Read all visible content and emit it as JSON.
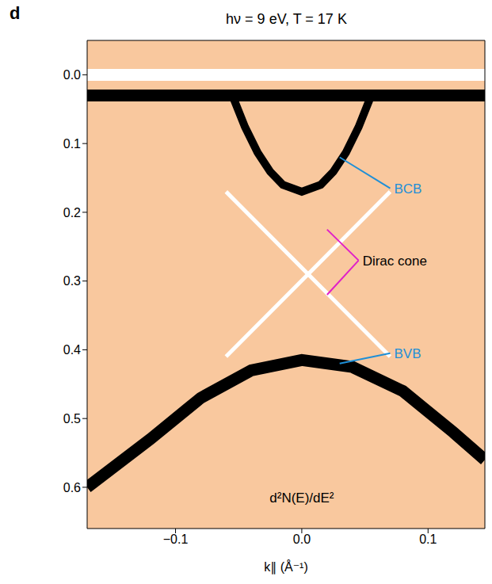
{
  "chart_data": {
    "type": "line",
    "panel": "d",
    "title": "hν = 9 eV, T = 17 K",
    "xlabel": "k∥ (Å⁻¹)",
    "xlim": [
      -0.17,
      0.145
    ],
    "xticks": [
      {
        "value": -0.1,
        "label": "−0.1"
      },
      {
        "value": 0,
        "label": "0.0"
      },
      0.1
    ],
    "ylim": [
      -0.05,
      0.66
    ],
    "yticks": [
      {
        "value": 0,
        "label": "0.0"
      },
      0.1,
      0.2,
      0.3,
      0.4,
      0.5,
      0.6
    ],
    "grid": false,
    "series": [
      {
        "color": "#ffffff",
        "line_style": "thick",
        "x": [
          -0.17,
          0.145
        ],
        "values": [
          0.0,
          0.0
        ]
      },
      {
        "color": "#000000",
        "line_style": "thick",
        "x": [
          -0.17,
          0.145
        ],
        "values": [
          0.03,
          0.03
        ]
      },
      {
        "color": "#000000",
        "line_style": "medium",
        "x": [
          -0.055,
          -0.045,
          -0.035,
          -0.025,
          -0.015,
          0,
          0.015,
          0.025,
          0.035,
          0.045,
          0.055
        ],
        "values": [
          0.03,
          0.076,
          0.113,
          0.141,
          0.16,
          0.17,
          0.16,
          0.141,
          0.113,
          0.076,
          0.03
        ]
      },
      {
        "color": "#ffffff",
        "line_style": "thin",
        "x": [
          -0.06,
          0.005,
          0.07
        ],
        "values": [
          0.17,
          0.29,
          0.17
        ]
      },
      {
        "color": "#ffffff",
        "line_style": "thin",
        "x": [
          -0.06,
          0.005,
          0.07
        ],
        "values": [
          0.41,
          0.29,
          0.41
        ]
      },
      {
        "color": "#000000",
        "line_style": "thick",
        "x": [
          -0.17,
          -0.12,
          -0.08,
          -0.04,
          0,
          0.04,
          0.08,
          0.12,
          0.145
        ],
        "values": [
          0.6,
          0.53,
          0.47,
          0.43,
          0.415,
          0.425,
          0.46,
          0.52,
          0.56
        ]
      }
    ],
    "annotations": [
      {
        "text": "BCB",
        "color": "#1f8fd6",
        "x": 0.07,
        "y": 0.165,
        "targets": [
          [
            0.03,
            0.12
          ]
        ]
      },
      {
        "text": "Dirac cone",
        "color": "#000000",
        "line_color": "#e020c8",
        "x": 0.045,
        "y": 0.27,
        "targets": [
          [
            0.02,
            0.225
          ],
          [
            0.02,
            0.32
          ]
        ]
      },
      {
        "text": "BVB",
        "color": "#1f8fd6",
        "x": 0.07,
        "y": 0.405,
        "targets": [
          [
            0.03,
            0.42
          ]
        ]
      },
      {
        "text": "d²N(E)/dE²",
        "color": "#000000",
        "x": 0.0,
        "y": 0.615,
        "targets": []
      }
    ]
  }
}
